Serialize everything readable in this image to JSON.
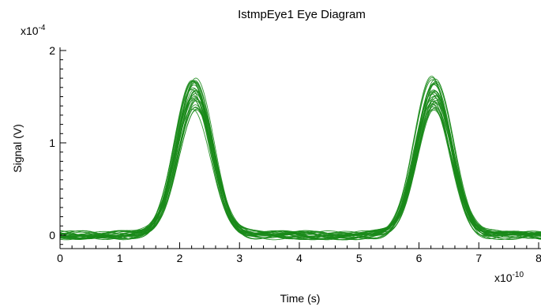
{
  "chart_data": {
    "type": "line",
    "title": "IstmpEye1 Eye Diagram",
    "xlabel": "Time (s)",
    "ylabel": "Signal (V)",
    "x_multiplier": {
      "base": "x10",
      "exponent": "-10"
    },
    "y_multiplier": {
      "base": "x10",
      "exponent": "-4"
    },
    "xlim": [
      0,
      8
    ],
    "ylim": [
      -0.1,
      2
    ],
    "x_ticks": [
      "0",
      "1",
      "2",
      "3",
      "4",
      "5",
      "6",
      "7",
      "8"
    ],
    "y_ticks": [
      "0",
      "1",
      "2"
    ],
    "grid": false,
    "line_color": "#1a8a1a",
    "trace_count": 30,
    "pulses": [
      {
        "center": 2.25,
        "peak_min": 1.36,
        "peak_max": 1.73,
        "base_start": 1.5,
        "base_end": 3.05
      },
      {
        "center": 6.25,
        "peak_min": 1.36,
        "peak_max": 1.73,
        "base_start": 5.5,
        "base_end": 7.05
      }
    ],
    "baseline_noise": 0.05
  }
}
